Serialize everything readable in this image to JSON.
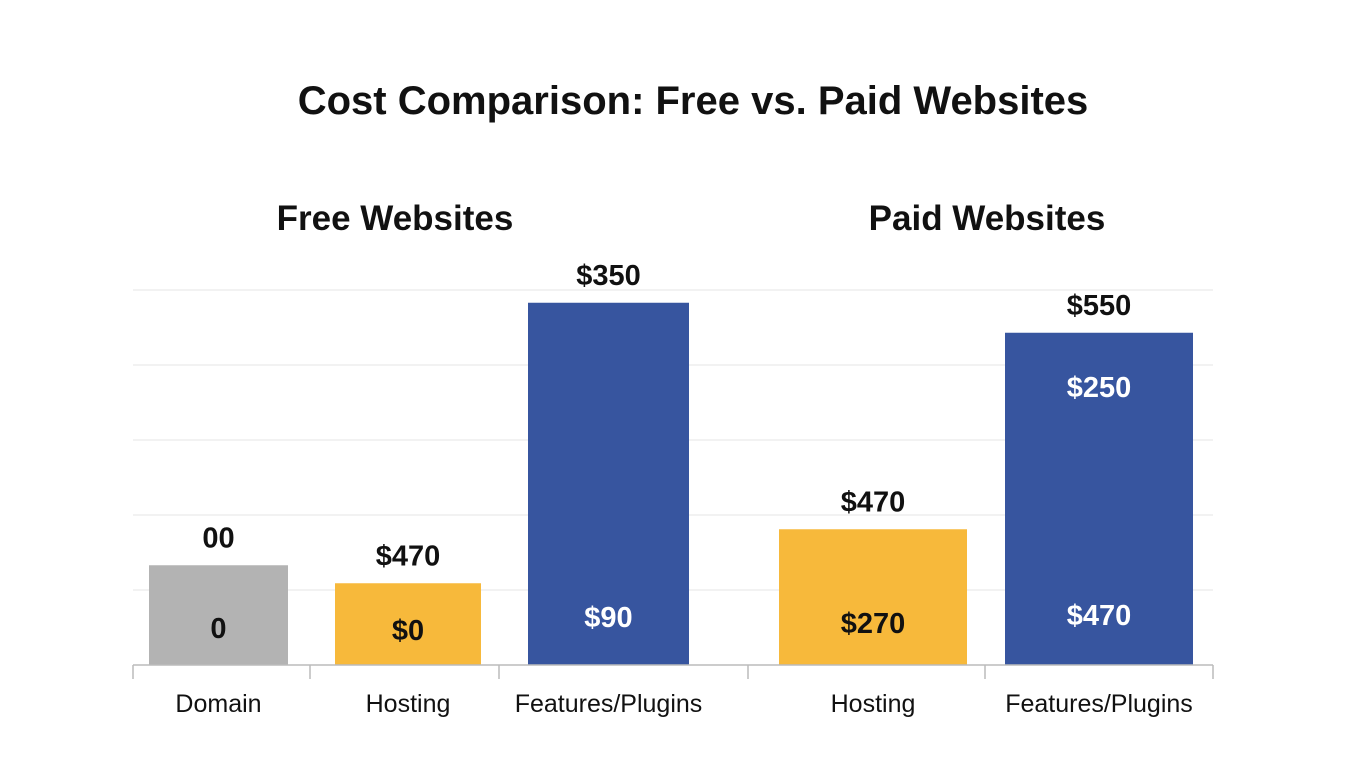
{
  "chart_data": {
    "type": "bar",
    "title": "Cost Comparison: Free vs. Paid Websites",
    "grid": true,
    "ylim": [
      0,
      5
    ],
    "colors": {
      "domain": "#b3b3b3",
      "hosting": "#f7b93b",
      "features": "#37559f",
      "grid": "#e6e6e6",
      "axis": "#bbbbbb"
    },
    "groups": [
      {
        "title": "Free Websites",
        "bars": [
          {
            "category": "Domain",
            "value": 1.33,
            "top_label": "00",
            "inner_label": "0",
            "color_key": "domain",
            "inner_color": "#111111"
          },
          {
            "category": "Hosting",
            "value": 1.09,
            "top_label": "$470",
            "inner_label": "$0",
            "color_key": "hosting",
            "inner_color": "#111111"
          },
          {
            "category": "Features/Plugins",
            "value": 4.83,
            "top_label": "$350",
            "inner_label": "$90",
            "color_key": "features",
            "inner_color": "#ffffff"
          }
        ]
      },
      {
        "title": "Paid Websites",
        "bars": [
          {
            "category": "Hosting",
            "value": 1.81,
            "top_label": "$470",
            "inner_label": "$270",
            "color_key": "hosting",
            "inner_color": "#111111"
          },
          {
            "category": "Features/Plugins",
            "value": 4.43,
            "top_label": "$550",
            "inner_label": "$470",
            "inner_label_2": "$250",
            "color_key": "features",
            "inner_color": "#ffffff"
          }
        ]
      }
    ]
  }
}
